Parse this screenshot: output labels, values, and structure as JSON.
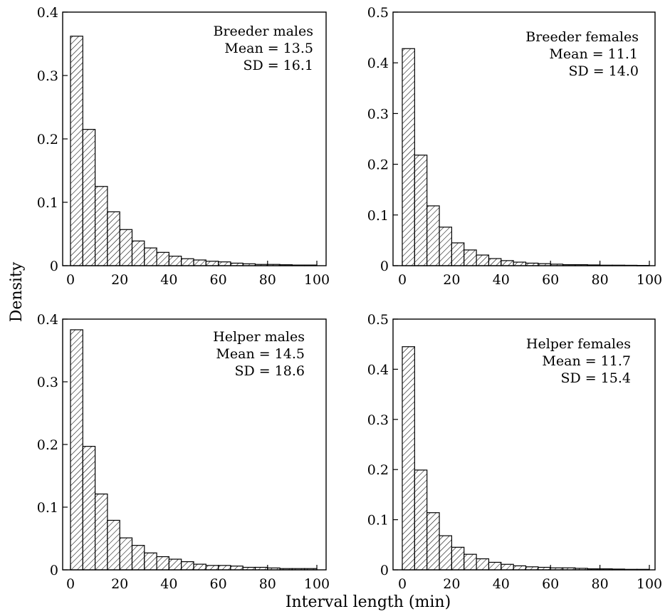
{
  "figure": {
    "ylabel": "Density",
    "xlabel": "Interval length (min)"
  },
  "chart_data": [
    {
      "type": "bar",
      "bin_width": 5,
      "xlim": [
        0,
        100
      ],
      "ylim": [
        0,
        0.4
      ],
      "xticks": [
        0,
        20,
        40,
        60,
        80,
        100
      ],
      "yticks": [
        0,
        0.1,
        0.2,
        0.3,
        0.4
      ],
      "annotation": [
        "Breeder males",
        "Mean = 13.5",
        "SD = 16.1"
      ],
      "bin_starts": [
        0,
        5,
        10,
        15,
        20,
        25,
        30,
        35,
        40,
        45,
        50,
        55,
        60,
        65,
        70,
        75,
        80,
        85,
        90,
        95
      ],
      "values": [
        0.362,
        0.215,
        0.125,
        0.085,
        0.057,
        0.039,
        0.028,
        0.021,
        0.015,
        0.011,
        0.009,
        0.007,
        0.006,
        0.004,
        0.003,
        0.002,
        0.002,
        0.0015,
        0.001,
        0.001
      ]
    },
    {
      "type": "bar",
      "bin_width": 5,
      "xlim": [
        0,
        100
      ],
      "ylim": [
        0,
        0.5
      ],
      "xticks": [
        0,
        20,
        40,
        60,
        80,
        100
      ],
      "yticks": [
        0,
        0.1,
        0.2,
        0.3,
        0.4,
        0.5
      ],
      "annotation": [
        "Breeder females",
        "Mean = 11.1",
        "SD = 14.0"
      ],
      "bin_starts": [
        0,
        5,
        10,
        15,
        20,
        25,
        30,
        35,
        40,
        45,
        50,
        55,
        60,
        65,
        70,
        75,
        80,
        85,
        90,
        95
      ],
      "values": [
        0.428,
        0.218,
        0.118,
        0.076,
        0.045,
        0.031,
        0.021,
        0.014,
        0.01,
        0.007,
        0.005,
        0.004,
        0.003,
        0.002,
        0.002,
        0.0015,
        0.001,
        0.001,
        0.0008,
        0.0005
      ]
    },
    {
      "type": "bar",
      "bin_width": 5,
      "xlim": [
        0,
        100
      ],
      "ylim": [
        0,
        0.4
      ],
      "xticks": [
        0,
        20,
        40,
        60,
        80,
        100
      ],
      "yticks": [
        0,
        0.1,
        0.2,
        0.3,
        0.4
      ],
      "annotation": [
        "Helper males",
        "Mean = 14.5",
        "SD = 18.6"
      ],
      "bin_starts": [
        0,
        5,
        10,
        15,
        20,
        25,
        30,
        35,
        40,
        45,
        50,
        55,
        60,
        65,
        70,
        75,
        80,
        85,
        90,
        95
      ],
      "values": [
        0.383,
        0.197,
        0.121,
        0.079,
        0.051,
        0.039,
        0.027,
        0.021,
        0.017,
        0.013,
        0.009,
        0.007,
        0.007,
        0.006,
        0.004,
        0.004,
        0.003,
        0.002,
        0.002,
        0.002
      ]
    },
    {
      "type": "bar",
      "bin_width": 5,
      "xlim": [
        0,
        100
      ],
      "ylim": [
        0,
        0.5
      ],
      "xticks": [
        0,
        20,
        40,
        60,
        80,
        100
      ],
      "yticks": [
        0,
        0.1,
        0.2,
        0.3,
        0.4,
        0.5
      ],
      "annotation": [
        "Helper females",
        "Mean = 11.7",
        "SD = 15.4"
      ],
      "bin_starts": [
        0,
        5,
        10,
        15,
        20,
        25,
        30,
        35,
        40,
        45,
        50,
        55,
        60,
        65,
        70,
        75,
        80,
        85,
        90,
        95
      ],
      "values": [
        0.445,
        0.199,
        0.114,
        0.068,
        0.045,
        0.031,
        0.022,
        0.015,
        0.011,
        0.008,
        0.006,
        0.005,
        0.004,
        0.004,
        0.003,
        0.002,
        0.002,
        0.0015,
        0.001,
        0.001
      ]
    }
  ]
}
